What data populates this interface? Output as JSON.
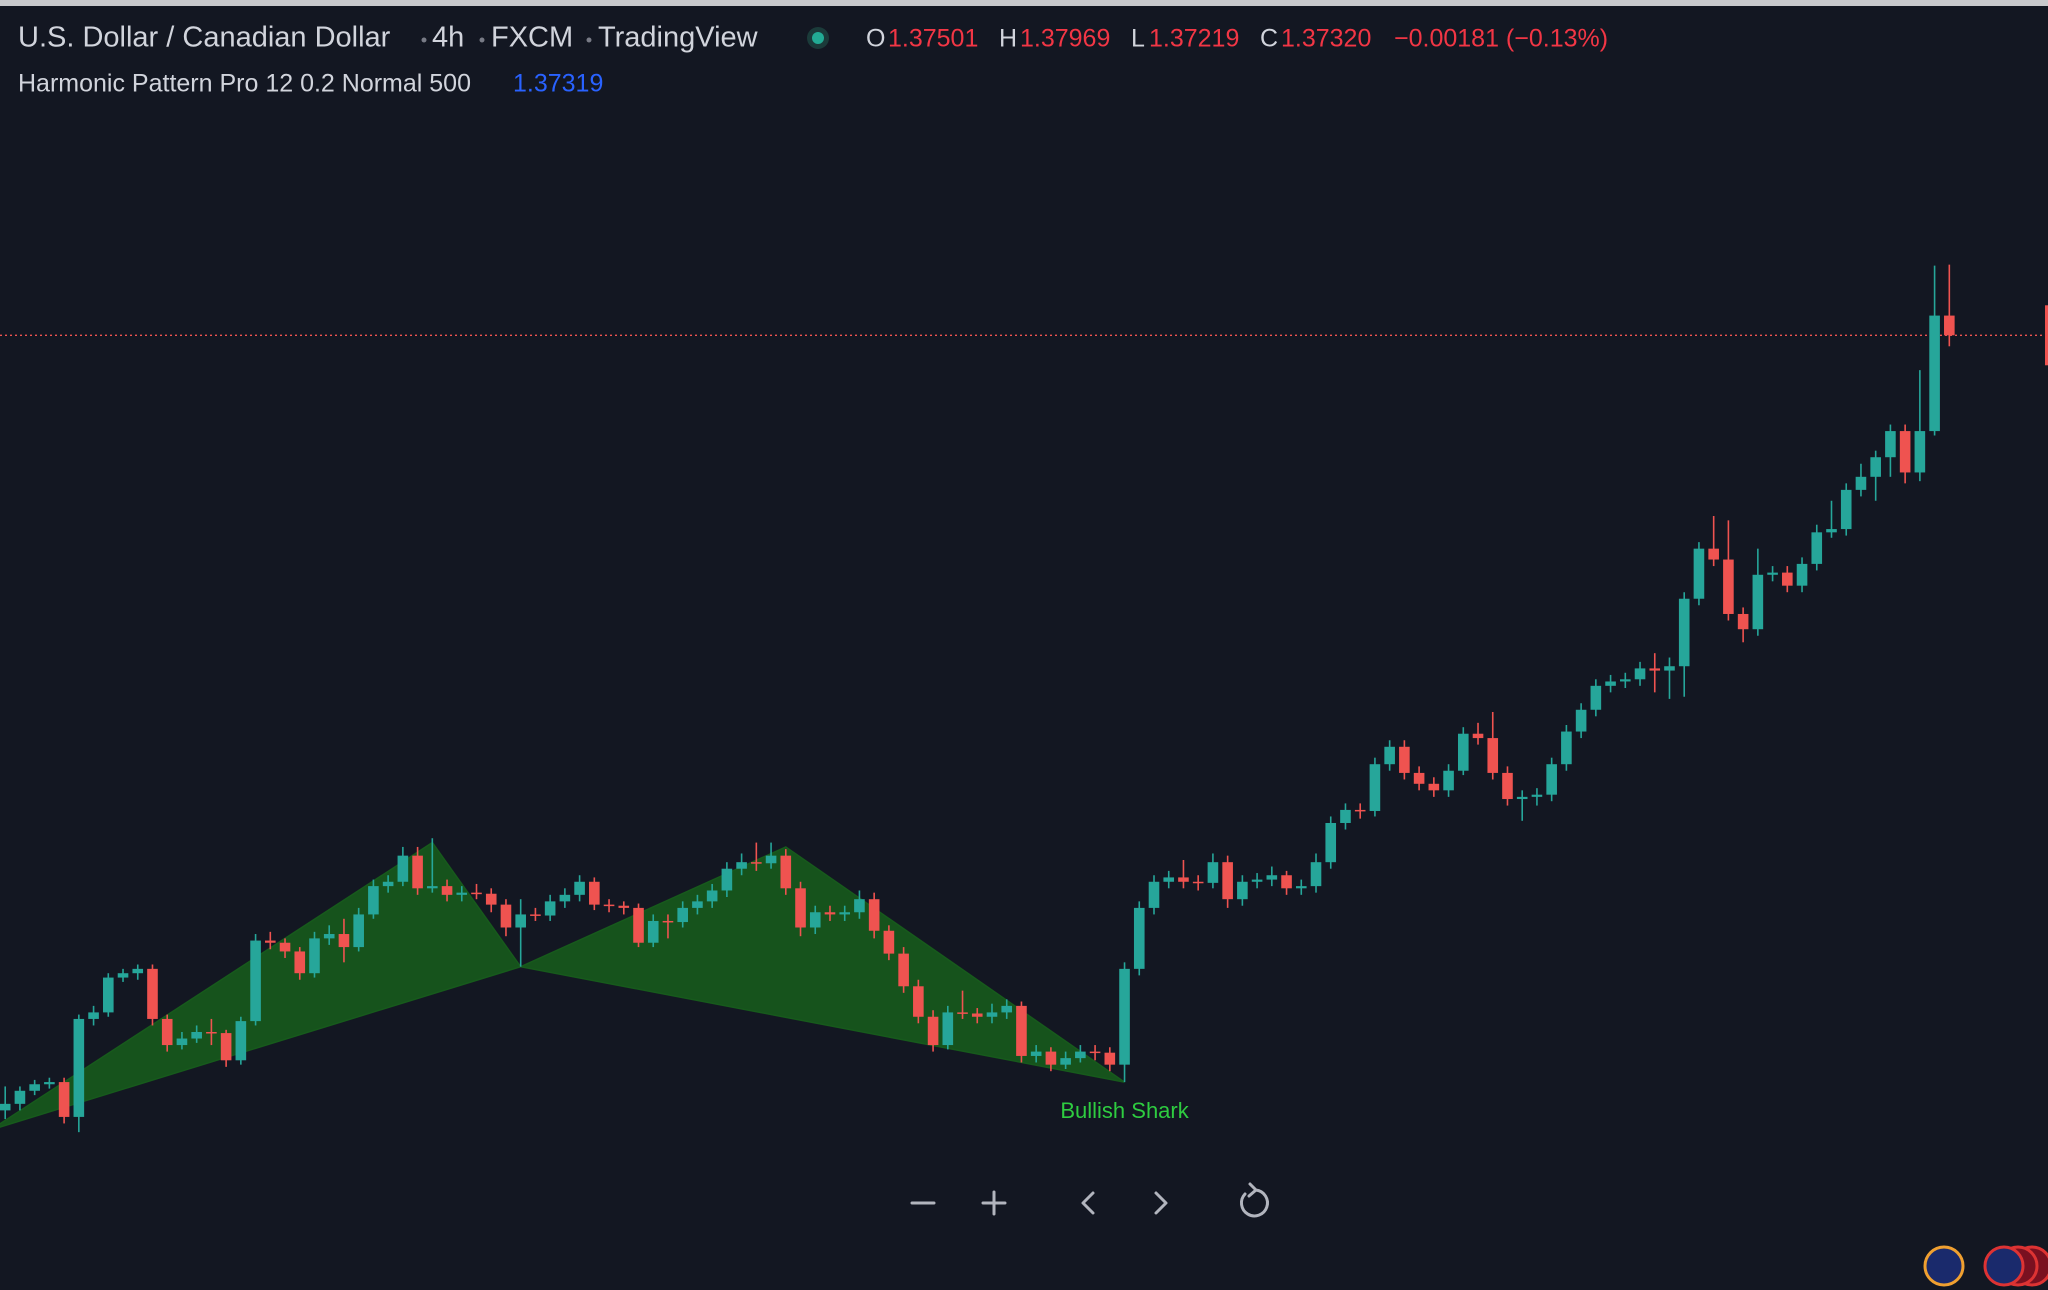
{
  "header": {
    "symbol": "U.S. Dollar / Canadian Dollar",
    "interval": "4h",
    "exchange": "FXCM",
    "source": "TradingView",
    "ohlc": {
      "open_label": "O",
      "open": "1.37501",
      "high_label": "H",
      "high": "1.37969",
      "low_label": "L",
      "low": "1.37219",
      "close_label": "C",
      "close": "1.37320",
      "change": "−0.00181 (−0.13%)"
    }
  },
  "indicator": {
    "name": "Harmonic Pattern Pro 12 0.2 Normal 500",
    "value": "1.37319"
  },
  "chart_data": {
    "type": "candlestick",
    "xlim": [
      -0.353,
      138.7
    ],
    "ylim": [
      1.2855,
      1.404
    ],
    "up_color": "#26a69a",
    "down_color": "#ef5350",
    "candles": [
      [
        1.302,
        1.3042,
        1.3012,
        1.3026
      ],
      [
        1.3026,
        1.3042,
        1.302,
        1.3038
      ],
      [
        1.3038,
        1.3048,
        1.3034,
        1.3044
      ],
      [
        1.3044,
        1.305,
        1.304,
        1.3046
      ],
      [
        1.3046,
        1.305,
        1.3008,
        1.3014
      ],
      [
        1.3014,
        1.3108,
        1.3,
        1.3104
      ],
      [
        1.3104,
        1.3116,
        1.3098,
        1.311
      ],
      [
        1.311,
        1.3146,
        1.3106,
        1.3142
      ],
      [
        1.3142,
        1.315,
        1.3138,
        1.3146
      ],
      [
        1.3146,
        1.3154,
        1.314,
        1.315
      ],
      [
        1.315,
        1.3154,
        1.3098,
        1.3104
      ],
      [
        1.3104,
        1.3108,
        1.3074,
        1.308
      ],
      [
        1.308,
        1.3092,
        1.3076,
        1.3086
      ],
      [
        1.3086,
        1.3098,
        1.3082,
        1.3092
      ],
      [
        1.3092,
        1.3104,
        1.308,
        1.3091
      ],
      [
        1.3091,
        1.3094,
        1.306,
        1.3066
      ],
      [
        1.3066,
        1.3106,
        1.3062,
        1.3102
      ],
      [
        1.3102,
        1.3182,
        1.3098,
        1.3176
      ],
      [
        1.3176,
        1.3184,
        1.3168,
        1.3174
      ],
      [
        1.3174,
        1.3178,
        1.316,
        1.3166
      ],
      [
        1.3166,
        1.317,
        1.314,
        1.3146
      ],
      [
        1.3146,
        1.3184,
        1.3142,
        1.3178
      ],
      [
        1.3178,
        1.319,
        1.3172,
        1.3182
      ],
      [
        1.3182,
        1.3196,
        1.3156,
        1.317
      ],
      [
        1.317,
        1.3206,
        1.3166,
        1.32
      ],
      [
        1.32,
        1.3232,
        1.3196,
        1.3226
      ],
      [
        1.3226,
        1.3236,
        1.322,
        1.323
      ],
      [
        1.323,
        1.3262,
        1.3226,
        1.3254
      ],
      [
        1.3254,
        1.3262,
        1.3218,
        1.3224
      ],
      [
        1.3224,
        1.327,
        1.322,
        1.3226
      ],
      [
        1.3226,
        1.3232,
        1.3212,
        1.3218
      ],
      [
        1.3218,
        1.3226,
        1.3212,
        1.322
      ],
      [
        1.322,
        1.3228,
        1.3214,
        1.3219
      ],
      [
        1.3219,
        1.3224,
        1.3202,
        1.3209
      ],
      [
        1.3209,
        1.3214,
        1.318,
        1.3188
      ],
      [
        1.3188,
        1.3214,
        1.3152,
        1.32
      ],
      [
        1.32,
        1.3206,
        1.3194,
        1.3199
      ],
      [
        1.3199,
        1.3218,
        1.3194,
        1.3212
      ],
      [
        1.3212,
        1.3224,
        1.3206,
        1.3218
      ],
      [
        1.3218,
        1.3236,
        1.3212,
        1.323
      ],
      [
        1.323,
        1.3234,
        1.3204,
        1.3209
      ],
      [
        1.3209,
        1.3214,
        1.3202,
        1.3208
      ],
      [
        1.3208,
        1.3212,
        1.32,
        1.3206
      ],
      [
        1.3206,
        1.321,
        1.317,
        1.3174
      ],
      [
        1.3174,
        1.32,
        1.317,
        1.3194
      ],
      [
        1.3194,
        1.32,
        1.3178,
        1.3193
      ],
      [
        1.3193,
        1.3212,
        1.3188,
        1.3206
      ],
      [
        1.3206,
        1.3218,
        1.32,
        1.3212
      ],
      [
        1.3212,
        1.3228,
        1.3206,
        1.3222
      ],
      [
        1.3222,
        1.3248,
        1.3216,
        1.3242
      ],
      [
        1.3242,
        1.3256,
        1.3236,
        1.3248
      ],
      [
        1.3248,
        1.3266,
        1.324,
        1.3247
      ],
      [
        1.3247,
        1.3266,
        1.3242,
        1.3254
      ],
      [
        1.3254,
        1.326,
        1.3218,
        1.3224
      ],
      [
        1.3224,
        1.323,
        1.318,
        1.3188
      ],
      [
        1.3188,
        1.3208,
        1.3182,
        1.3202
      ],
      [
        1.3202,
        1.3208,
        1.3194,
        1.32
      ],
      [
        1.32,
        1.3208,
        1.3194,
        1.3202
      ],
      [
        1.3202,
        1.3222,
        1.3196,
        1.3214
      ],
      [
        1.3214,
        1.322,
        1.3178,
        1.3185
      ],
      [
        1.3185,
        1.319,
        1.3158,
        1.3164
      ],
      [
        1.3164,
        1.317,
        1.3128,
        1.3134
      ],
      [
        1.3134,
        1.314,
        1.31,
        1.3106
      ],
      [
        1.3106,
        1.3112,
        1.3074,
        1.308
      ],
      [
        1.308,
        1.3116,
        1.3076,
        1.311
      ],
      [
        1.311,
        1.313,
        1.3104,
        1.3109
      ],
      [
        1.3109,
        1.3114,
        1.31,
        1.3106
      ],
      [
        1.3106,
        1.3118,
        1.31,
        1.311
      ],
      [
        1.311,
        1.3122,
        1.3104,
        1.3116
      ],
      [
        1.3116,
        1.312,
        1.3064,
        1.307
      ],
      [
        1.307,
        1.308,
        1.3064,
        1.3074
      ],
      [
        1.3074,
        1.3078,
        1.3056,
        1.3062
      ],
      [
        1.3062,
        1.3074,
        1.3058,
        1.3068
      ],
      [
        1.3068,
        1.308,
        1.3064,
        1.3074
      ],
      [
        1.3074,
        1.308,
        1.3066,
        1.3073
      ],
      [
        1.3073,
        1.3078,
        1.3056,
        1.3062
      ],
      [
        1.3062,
        1.3156,
        1.3046,
        1.315
      ],
      [
        1.315,
        1.3212,
        1.3144,
        1.3206
      ],
      [
        1.3206,
        1.3236,
        1.32,
        1.323
      ],
      [
        1.323,
        1.324,
        1.3224,
        1.3234
      ],
      [
        1.3234,
        1.325,
        1.3224,
        1.323
      ],
      [
        1.323,
        1.3236,
        1.3222,
        1.3229
      ],
      [
        1.3229,
        1.3256,
        1.3224,
        1.3248
      ],
      [
        1.3248,
        1.3254,
        1.3206,
        1.3214
      ],
      [
        1.3214,
        1.3236,
        1.3208,
        1.323
      ],
      [
        1.323,
        1.3238,
        1.3224,
        1.3232
      ],
      [
        1.3232,
        1.3244,
        1.3226,
        1.3236
      ],
      [
        1.3236,
        1.324,
        1.3218,
        1.3224
      ],
      [
        1.3224,
        1.3232,
        1.3218,
        1.3226
      ],
      [
        1.3226,
        1.3256,
        1.322,
        1.3248
      ],
      [
        1.3248,
        1.329,
        1.3242,
        1.3284
      ],
      [
        1.3284,
        1.3302,
        1.3278,
        1.3296
      ],
      [
        1.3296,
        1.3302,
        1.3288,
        1.3295
      ],
      [
        1.3295,
        1.3344,
        1.329,
        1.3338
      ],
      [
        1.3338,
        1.336,
        1.3332,
        1.3354
      ],
      [
        1.3354,
        1.336,
        1.3324,
        1.333
      ],
      [
        1.333,
        1.3336,
        1.3314,
        1.332
      ],
      [
        1.332,
        1.3326,
        1.3308,
        1.3314
      ],
      [
        1.3314,
        1.3338,
        1.3308,
        1.3332
      ],
      [
        1.3332,
        1.3372,
        1.3328,
        1.3366
      ],
      [
        1.3366,
        1.3376,
        1.3356,
        1.3362
      ],
      [
        1.3362,
        1.3386,
        1.3324,
        1.333
      ],
      [
        1.333,
        1.3336,
        1.33,
        1.3306
      ],
      [
        1.3306,
        1.3314,
        1.3286,
        1.3308
      ],
      [
        1.3308,
        1.3316,
        1.33,
        1.331
      ],
      [
        1.331,
        1.3344,
        1.3304,
        1.3338
      ],
      [
        1.3338,
        1.3374,
        1.3332,
        1.3368
      ],
      [
        1.3368,
        1.3394,
        1.3362,
        1.3388
      ],
      [
        1.3388,
        1.3416,
        1.3382,
        1.341
      ],
      [
        1.341,
        1.342,
        1.3404,
        1.3414
      ],
      [
        1.3414,
        1.3422,
        1.3408,
        1.3416
      ],
      [
        1.3416,
        1.3432,
        1.341,
        1.3426
      ],
      [
        1.3426,
        1.344,
        1.3404,
        1.3424
      ],
      [
        1.3424,
        1.3436,
        1.3398,
        1.3428
      ],
      [
        1.3428,
        1.3496,
        1.34,
        1.349
      ],
      [
        1.349,
        1.3542,
        1.3484,
        1.3536
      ],
      [
        1.3536,
        1.3566,
        1.352,
        1.3526
      ],
      [
        1.3526,
        1.3562,
        1.347,
        1.3476
      ],
      [
        1.3476,
        1.3482,
        1.345,
        1.3462
      ],
      [
        1.3462,
        1.3536,
        1.3456,
        1.3512
      ],
      [
        1.3512,
        1.352,
        1.3506,
        1.3514
      ],
      [
        1.3514,
        1.352,
        1.3496,
        1.3502
      ],
      [
        1.3502,
        1.3528,
        1.3496,
        1.3522
      ],
      [
        1.3522,
        1.3558,
        1.3516,
        1.3551
      ],
      [
        1.3551,
        1.358,
        1.3546,
        1.3554
      ],
      [
        1.3554,
        1.3596,
        1.3548,
        1.359
      ],
      [
        1.359,
        1.3614,
        1.3584,
        1.3602
      ],
      [
        1.3602,
        1.3626,
        1.358,
        1.362
      ],
      [
        1.362,
        1.365,
        1.3602,
        1.3644
      ],
      [
        1.3644,
        1.365,
        1.3596,
        1.3606
      ],
      [
        1.3606,
        1.37,
        1.3598,
        1.3644
      ],
      [
        1.3644,
        1.3796,
        1.364,
        1.37501
      ],
      [
        1.37501,
        1.37969,
        1.37219,
        1.3732
      ]
    ],
    "pattern": {
      "label": "Bullish Shark",
      "color": "#175a1c",
      "label_color": "#2ecc40",
      "x": [
        -1,
        29,
        35,
        53,
        76
      ],
      "y": [
        1.3002,
        1.3266,
        1.3152,
        1.3262,
        1.3046
      ]
    }
  }
}
